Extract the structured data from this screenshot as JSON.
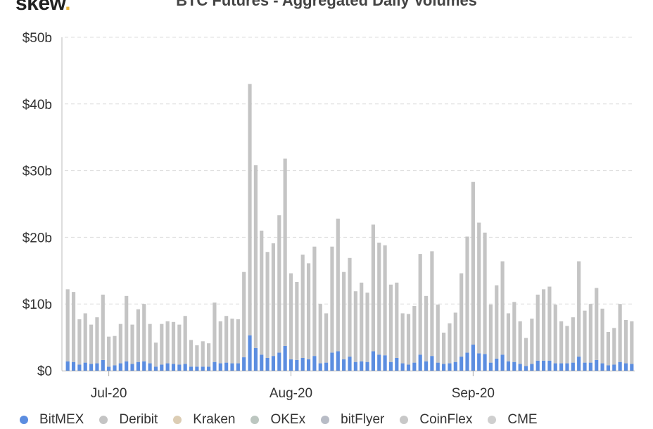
{
  "logo": {
    "text": "skew",
    "dot": "."
  },
  "chart_data": {
    "type": "bar",
    "stacked": true,
    "title": "BTC Futures - Aggregated Daily Volumes",
    "xlabel": "",
    "ylabel": "",
    "y_unit": "billions USD",
    "ylim": [
      0,
      50
    ],
    "yticks": [
      0,
      10,
      20,
      30,
      40,
      50
    ],
    "ytick_labels": [
      "$0",
      "$10b",
      "$20b",
      "$30b",
      "$40b",
      "$50b"
    ],
    "x_tick_labels": [
      {
        "label": "Jul-20",
        "at_index": 7
      },
      {
        "label": "Aug-20",
        "at_index": 38
      },
      {
        "label": "Sep-20",
        "at_index": 69
      }
    ],
    "grid": "horizontal dashed",
    "legend_position": "bottom",
    "series": [
      {
        "name": "BitMEX",
        "color": "#5b8de0",
        "values": [
          1.4,
          1.3,
          0.9,
          1.2,
          1.0,
          1.1,
          1.6,
          0.6,
          0.8,
          1.1,
          1.4,
          1.0,
          1.3,
          1.4,
          1.1,
          0.6,
          0.9,
          1.1,
          1.0,
          0.9,
          1.0,
          0.6,
          0.6,
          0.6,
          0.6,
          1.3,
          1.1,
          1.2,
          1.1,
          1.1,
          2.0,
          5.3,
          3.4,
          2.4,
          1.9,
          2.2,
          2.7,
          3.7,
          1.7,
          1.6,
          1.9,
          1.7,
          2.2,
          1.1,
          1.2,
          2.7,
          2.9,
          1.7,
          2.1,
          1.3,
          1.4,
          1.3,
          2.9,
          2.4,
          2.3,
          1.3,
          1.9,
          1.1,
          0.9,
          1.2,
          2.4,
          1.4,
          2.2,
          1.2,
          1.0,
          1.1,
          1.3,
          2.1,
          2.7,
          3.9,
          2.6,
          2.5,
          1.2,
          1.8,
          2.4,
          1.4,
          1.3,
          1.0,
          0.7,
          1.0,
          1.5,
          1.5,
          1.5,
          1.1,
          1.1,
          1.1,
          1.2,
          2.1,
          1.2,
          1.2,
          1.6,
          1.1,
          0.8,
          0.9,
          1.3,
          1.1,
          1.0
        ]
      },
      {
        "name": "Deribit",
        "color": "#c4c4c4",
        "values": [
          10.8,
          10.5,
          6.8,
          7.4,
          5.9,
          6.9,
          9.8,
          4.5,
          4.4,
          5.9,
          9.8,
          5.9,
          7.9,
          8.6,
          5.9,
          3.6,
          6.1,
          6.3,
          6.3,
          6.0,
          7.2,
          4.0,
          3.2,
          3.8,
          3.5,
          8.9,
          6.3,
          7.0,
          6.7,
          6.6,
          12.8,
          37.7,
          27.4,
          18.6,
          15.9,
          16.9,
          20.6,
          28.1,
          12.9,
          11.7,
          15.5,
          14.4,
          16.4,
          8.9,
          7.4,
          15.9,
          19.9,
          13.1,
          14.8,
          10.6,
          11.8,
          10.4,
          19.0,
          16.8,
          16.5,
          11.6,
          11.3,
          7.5,
          7.6,
          8.5,
          15.1,
          9.8,
          15.7,
          8.7,
          4.7,
          6.0,
          7.4,
          12.5,
          17.4,
          24.4,
          19.6,
          18.2,
          8.7,
          11.0,
          14.0,
          7.2,
          9.0,
          6.4,
          4.2,
          6.8,
          9.9,
          10.7,
          11.1,
          8.8,
          6.3,
          5.6,
          6.8,
          14.3,
          7.8,
          8.8,
          10.8,
          8.2,
          5.0,
          5.5,
          8.7,
          6.5,
          6.4
        ]
      },
      {
        "name": "Kraken",
        "color": "#dccdb4",
        "values": [
          0,
          0,
          0,
          0,
          0,
          0,
          0,
          0,
          0,
          0,
          0,
          0,
          0,
          0,
          0,
          0,
          0,
          0,
          0,
          0,
          0,
          0,
          0,
          0,
          0,
          0,
          0,
          0,
          0,
          0,
          0,
          0,
          0,
          0,
          0,
          0,
          0,
          0,
          0,
          0,
          0,
          0,
          0,
          0,
          0,
          0,
          0,
          0,
          0,
          0,
          0,
          0,
          0,
          0,
          0,
          0,
          0,
          0,
          0,
          0,
          0,
          0,
          0,
          0,
          0,
          0,
          0,
          0,
          0,
          0,
          0,
          0,
          0,
          0,
          0,
          0,
          0,
          0,
          0,
          0,
          0,
          0,
          0,
          0,
          0,
          0,
          0,
          0,
          0,
          0,
          0,
          0,
          0,
          0,
          0,
          0,
          0
        ]
      },
      {
        "name": "OKEx",
        "color": "#bcc6c0",
        "values": [
          0,
          0,
          0,
          0,
          0,
          0,
          0,
          0,
          0,
          0,
          0,
          0,
          0,
          0,
          0,
          0,
          0,
          0,
          0,
          0,
          0,
          0,
          0,
          0,
          0,
          0,
          0,
          0,
          0,
          0,
          0,
          0,
          0,
          0,
          0,
          0,
          0,
          0,
          0,
          0,
          0,
          0,
          0,
          0,
          0,
          0,
          0,
          0,
          0,
          0,
          0,
          0,
          0,
          0,
          0,
          0,
          0,
          0,
          0,
          0,
          0,
          0,
          0,
          0,
          0,
          0,
          0,
          0,
          0,
          0,
          0,
          0,
          0,
          0,
          0,
          0,
          0,
          0,
          0,
          0,
          0,
          0,
          0,
          0,
          0,
          0,
          0,
          0,
          0,
          0,
          0,
          0,
          0,
          0,
          0,
          0,
          0
        ]
      },
      {
        "name": "bitFlyer",
        "color": "#b8bcc6",
        "values": [
          0,
          0,
          0,
          0,
          0,
          0,
          0,
          0,
          0,
          0,
          0,
          0,
          0,
          0,
          0,
          0,
          0,
          0,
          0,
          0,
          0,
          0,
          0,
          0,
          0,
          0,
          0,
          0,
          0,
          0,
          0,
          0,
          0,
          0,
          0,
          0,
          0,
          0,
          0,
          0,
          0,
          0,
          0,
          0,
          0,
          0,
          0,
          0,
          0,
          0,
          0,
          0,
          0,
          0,
          0,
          0,
          0,
          0,
          0,
          0,
          0,
          0,
          0,
          0,
          0,
          0,
          0,
          0,
          0,
          0,
          0,
          0,
          0,
          0,
          0,
          0,
          0,
          0,
          0,
          0,
          0,
          0,
          0,
          0,
          0,
          0,
          0,
          0,
          0,
          0,
          0,
          0,
          0,
          0,
          0,
          0,
          0
        ]
      },
      {
        "name": "CoinFlex",
        "color": "#c8c8c8",
        "values": [
          0,
          0,
          0,
          0,
          0,
          0,
          0,
          0,
          0,
          0,
          0,
          0,
          0,
          0,
          0,
          0,
          0,
          0,
          0,
          0,
          0,
          0,
          0,
          0,
          0,
          0,
          0,
          0,
          0,
          0,
          0,
          0,
          0,
          0,
          0,
          0,
          0,
          0,
          0,
          0,
          0,
          0,
          0,
          0,
          0,
          0,
          0,
          0,
          0,
          0,
          0,
          0,
          0,
          0,
          0,
          0,
          0,
          0,
          0,
          0,
          0,
          0,
          0,
          0,
          0,
          0,
          0,
          0,
          0,
          0,
          0,
          0,
          0,
          0,
          0,
          0,
          0,
          0,
          0,
          0,
          0,
          0,
          0,
          0,
          0,
          0,
          0,
          0,
          0,
          0,
          0,
          0,
          0,
          0,
          0,
          0,
          0
        ]
      },
      {
        "name": "CME",
        "color": "#cfcfcf",
        "values": [
          0,
          0,
          0,
          0,
          0,
          0,
          0,
          0,
          0,
          0,
          0,
          0,
          0,
          0,
          0,
          0,
          0,
          0,
          0,
          0,
          0,
          0,
          0,
          0,
          0,
          0,
          0,
          0,
          0,
          0,
          0,
          0,
          0,
          0,
          0,
          0,
          0,
          0,
          0,
          0,
          0,
          0,
          0,
          0,
          0,
          0,
          0,
          0,
          0,
          0,
          0,
          0,
          0,
          0,
          0,
          0,
          0,
          0,
          0,
          0,
          0,
          0,
          0,
          0,
          0,
          0,
          0,
          0,
          0,
          0,
          0,
          0,
          0,
          0,
          0,
          0,
          0,
          0,
          0,
          0,
          0,
          0,
          0,
          0,
          0,
          0,
          0,
          0,
          0,
          0,
          0,
          0,
          0,
          0,
          0,
          0,
          0
        ]
      }
    ]
  }
}
